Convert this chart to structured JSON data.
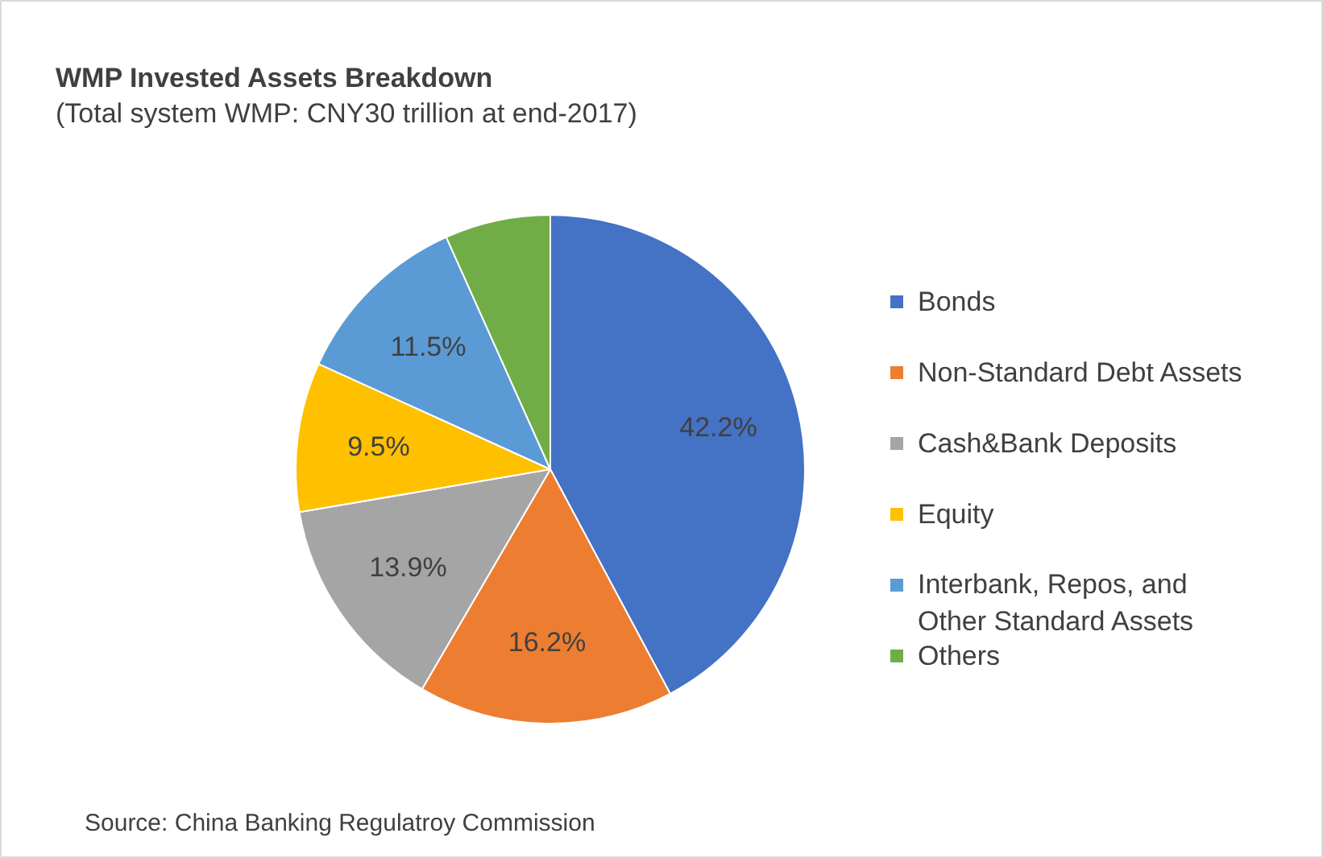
{
  "chart_data": {
    "type": "pie",
    "title": "WMP Invested Assets  Breakdown",
    "subtitle": "(Total system WMP: CNY30 trillion at end-2017)",
    "categories": [
      "Bonds",
      "Non-Standard Debt Assets",
      "Cash&Bank Deposits",
      "Equity",
      "Interbank, Repos, and Other Standard Assets",
      "Others"
    ],
    "values": [
      42.2,
      16.2,
      13.9,
      9.5,
      11.5,
      6.7
    ],
    "colors": [
      "#4472c4",
      "#ed7d31",
      "#a5a5a5",
      "#ffc000",
      "#5b9bd5",
      "#70ad47"
    ],
    "value_labels": [
      "42.2%",
      "16.2%",
      "13.9%",
      "9.5%",
      "11.5%",
      null
    ],
    "legend": "right",
    "annotations": [
      "Source: China Banking Regulatroy Commission"
    ]
  }
}
